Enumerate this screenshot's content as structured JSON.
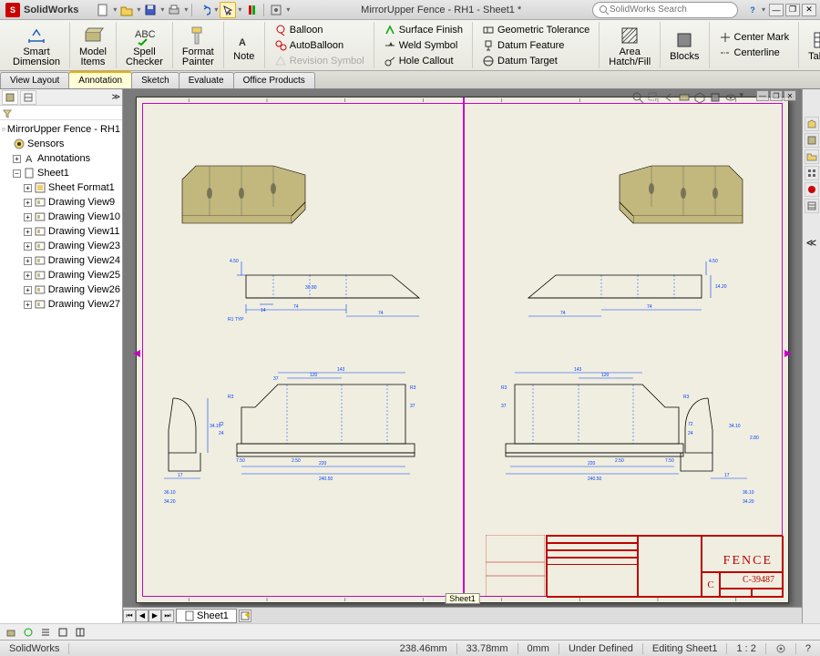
{
  "app": {
    "name": "SolidWorks",
    "doc_title": "MirrorUpper Fence - RH1 - Sheet1 *",
    "search_placeholder": "SolidWorks Search"
  },
  "ribbon": {
    "large": [
      {
        "label1": "Smart",
        "label2": "Dimension"
      },
      {
        "label1": "Model",
        "label2": "Items"
      },
      {
        "label1": "Spell",
        "label2": "Checker"
      },
      {
        "label1": "Format",
        "label2": "Painter"
      },
      {
        "label1": "Note",
        "label2": ""
      },
      {
        "label1": "Area",
        "label2": "Hatch/Fill"
      },
      {
        "label1": "Blocks",
        "label2": ""
      },
      {
        "label1": "Tables",
        "label2": ""
      }
    ],
    "col1": [
      "Balloon",
      "AutoBalloon",
      "Revision Symbol"
    ],
    "col2": [
      "Surface Finish",
      "Weld Symbol",
      "Hole Callout"
    ],
    "col3": [
      "Geometric Tolerance",
      "Datum Feature",
      "Datum Target"
    ],
    "col4": [
      "Center Mark",
      "Centerline"
    ]
  },
  "tabs": [
    "View Layout",
    "Annotation",
    "Sketch",
    "Evaluate",
    "Office Products"
  ],
  "tree": {
    "root": "MirrorUpper Fence - RH1",
    "items": [
      "Sensors",
      "Annotations",
      "Sheet1"
    ],
    "sheet_children": [
      "Sheet Format1",
      "Drawing View9",
      "Drawing View10",
      "Drawing View11",
      "Drawing View23",
      "Drawing View24",
      "Drawing View25",
      "Drawing View26",
      "Drawing View27"
    ]
  },
  "sheet": {
    "name": "Sheet1",
    "title_block_name": "FENCE",
    "dwg_no": "C-39487"
  },
  "status": {
    "app": "SolidWorks",
    "x": "238.46mm",
    "y": "33.78mm",
    "z": "0mm",
    "state": "Under Defined",
    "mode": "Editing Sheet1",
    "scale": "1 : 2"
  },
  "colors": {
    "sheet_bg": "#f0eee0",
    "border": "#c800c8",
    "dim": "#0040ff",
    "title_block": "#b00000",
    "part_fill": "#c2b87d"
  }
}
